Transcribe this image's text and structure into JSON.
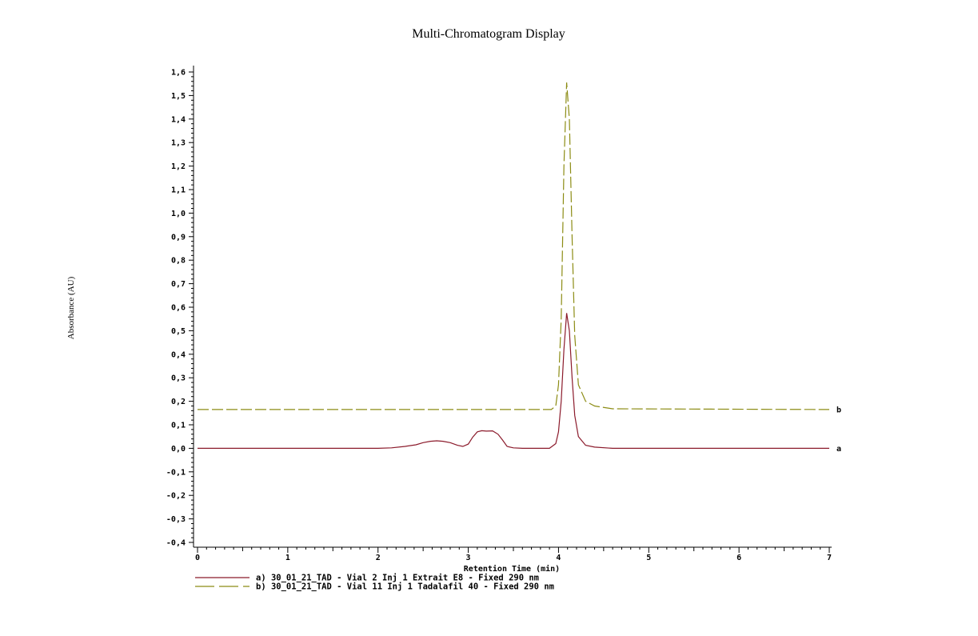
{
  "chart_data": {
    "type": "line",
    "title": "Multi-Chromatogram Display",
    "ylabel": "Absorbance (AU)",
    "xlabel": "Retention Time (min)",
    "xlim": [
      0,
      7
    ],
    "ylim": [
      -0.4,
      1.6
    ],
    "x_ticks": [
      "0",
      "1",
      "2",
      "3",
      "4",
      "5",
      "6",
      "7"
    ],
    "y_ticks": [
      "-0,4",
      "-0,3",
      "-0,2",
      "-0,1",
      "0,0",
      "0,1",
      "0,2",
      "0,3",
      "0,4",
      "0,5",
      "0,6",
      "0,7",
      "0,8",
      "0,9",
      "1,0",
      "1,1",
      "1,2",
      "1,3",
      "1,4",
      "1,5",
      "1,6"
    ],
    "grid": false,
    "legend_position": "bottom-left",
    "series": [
      {
        "name": "a) 30_01_21_TAD - Vial 2 Inj 1 Extrait E8 - Fixed 290 nm",
        "end_label": "a",
        "color": "#8b1a2b",
        "dash": "solid",
        "baseline": 0.0,
        "points": [
          [
            0,
            0.0
          ],
          [
            2.0,
            0.0
          ],
          [
            2.15,
            0.002
          ],
          [
            2.3,
            0.008
          ],
          [
            2.42,
            0.015
          ],
          [
            2.5,
            0.024
          ],
          [
            2.58,
            0.03
          ],
          [
            2.65,
            0.032
          ],
          [
            2.72,
            0.03
          ],
          [
            2.8,
            0.024
          ],
          [
            2.88,
            0.013
          ],
          [
            2.94,
            0.008
          ],
          [
            3.0,
            0.018
          ],
          [
            3.05,
            0.048
          ],
          [
            3.1,
            0.07
          ],
          [
            3.15,
            0.075
          ],
          [
            3.2,
            0.073
          ],
          [
            3.27,
            0.074
          ],
          [
            3.33,
            0.06
          ],
          [
            3.38,
            0.035
          ],
          [
            3.43,
            0.008
          ],
          [
            3.5,
            0.002
          ],
          [
            3.6,
            0.0
          ],
          [
            3.9,
            0.0
          ],
          [
            3.97,
            0.02
          ],
          [
            4.0,
            0.07
          ],
          [
            4.03,
            0.2
          ],
          [
            4.06,
            0.42
          ],
          [
            4.09,
            0.575
          ],
          [
            4.12,
            0.5
          ],
          [
            4.15,
            0.3
          ],
          [
            4.18,
            0.14
          ],
          [
            4.22,
            0.05
          ],
          [
            4.3,
            0.013
          ],
          [
            4.4,
            0.005
          ],
          [
            4.6,
            0.0
          ],
          [
            7.0,
            0.0
          ]
        ]
      },
      {
        "name": "b) 30_01_21_TAD - Vial 11 Inj 1 Tadalafil 40 - Fixed 290 nm",
        "end_label": "b",
        "color": "#8c8c14",
        "dash": "dashed",
        "baseline": 0.165,
        "points": [
          [
            0,
            0.165
          ],
          [
            3.92,
            0.165
          ],
          [
            3.97,
            0.18
          ],
          [
            4.0,
            0.27
          ],
          [
            4.03,
            0.55
          ],
          [
            4.06,
            1.2
          ],
          [
            4.09,
            1.555
          ],
          [
            4.12,
            1.4
          ],
          [
            4.15,
            0.9
          ],
          [
            4.18,
            0.48
          ],
          [
            4.22,
            0.27
          ],
          [
            4.3,
            0.2
          ],
          [
            4.4,
            0.18
          ],
          [
            4.6,
            0.168
          ],
          [
            7.0,
            0.165
          ]
        ]
      }
    ]
  }
}
